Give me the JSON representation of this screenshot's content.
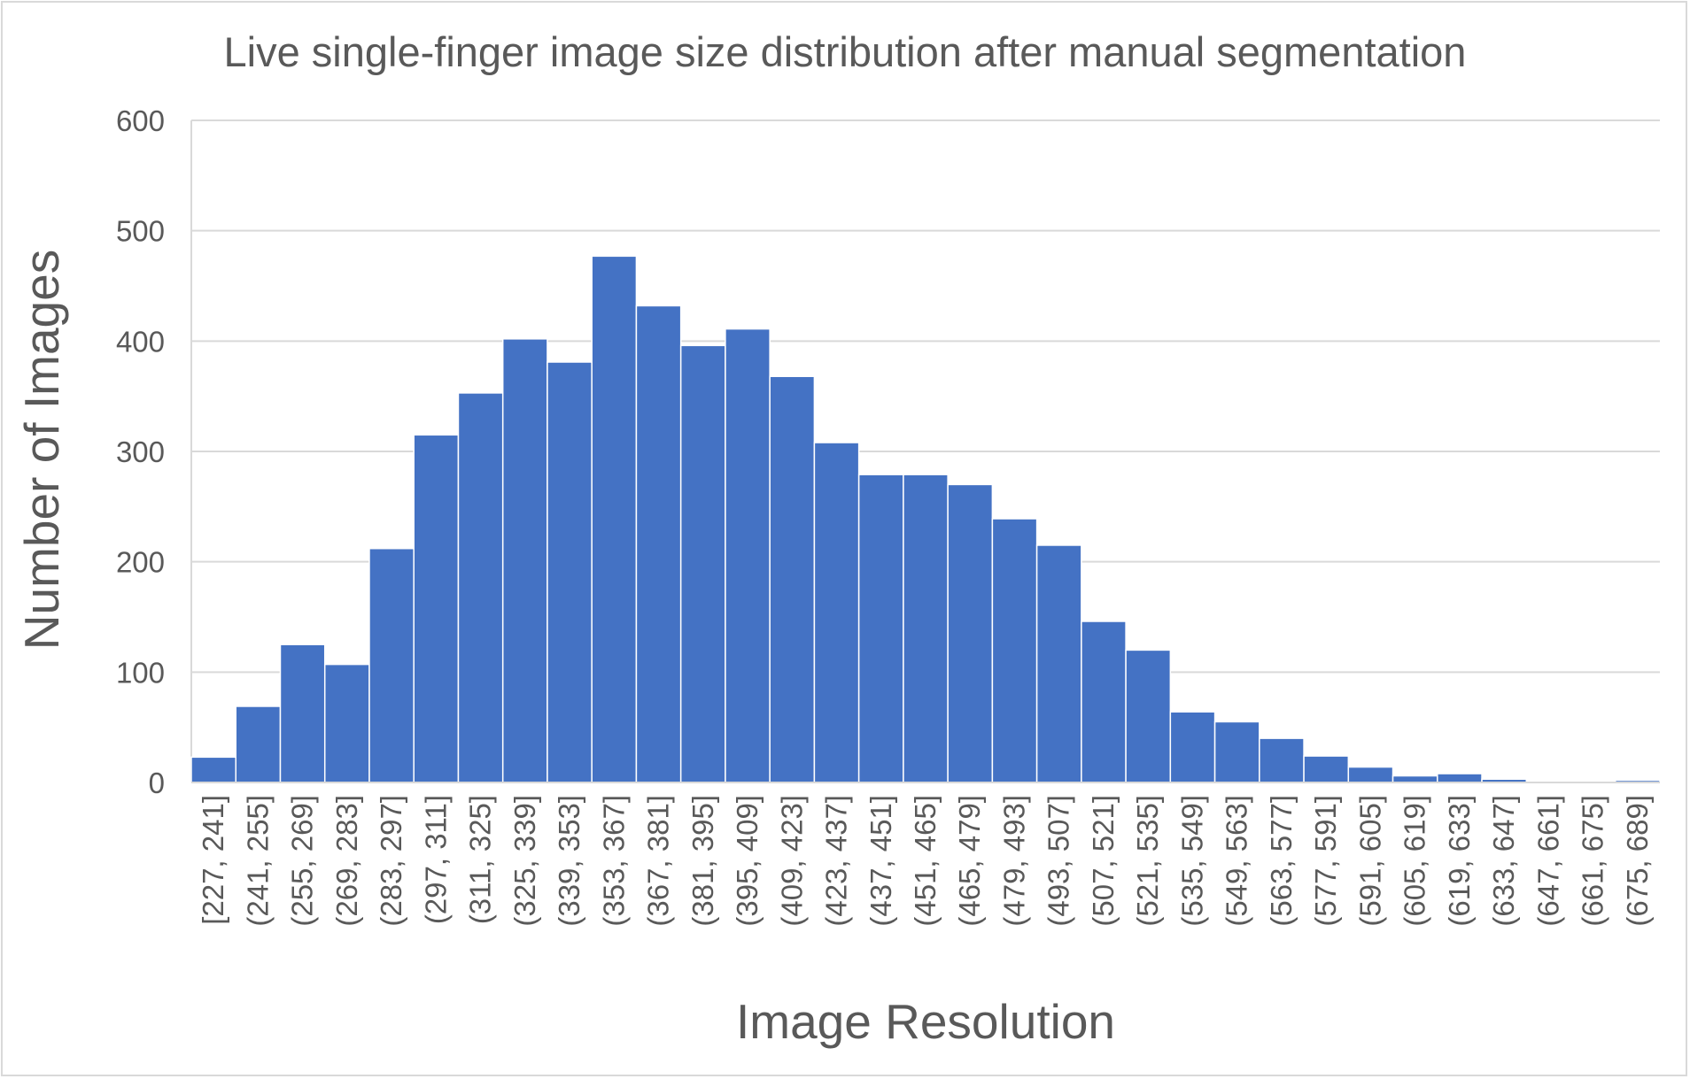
{
  "chart_data": {
    "type": "bar",
    "title": "Live single-finger image size distribution after manual segmentation",
    "xlabel": "Image Resolution",
    "ylabel": "Number of Images",
    "ylim": [
      0,
      600
    ],
    "yticks": [
      0,
      100,
      200,
      300,
      400,
      500,
      600
    ],
    "grid": true,
    "legend": "none",
    "bar_color": "#4472C4",
    "categories": [
      "[227, 241]",
      "(241, 255]",
      "(255, 269]",
      "(269, 283]",
      "(283, 297]",
      "(297, 311]",
      "(311, 325]",
      "(325, 339]",
      "(339, 353]",
      "(353, 367]",
      "(367, 381]",
      "(381, 395]",
      "(395, 409]",
      "(409, 423]",
      "(423, 437]",
      "(437, 451]",
      "(451, 465]",
      "(465, 479]",
      "(479, 493]",
      "(493, 507]",
      "(507, 521]",
      "(521, 535]",
      "(535, 549]",
      "(549, 563]",
      "(563, 577]",
      "(577, 591]",
      "(591, 605]",
      "(605, 619]",
      "(619, 633]",
      "(633, 647]",
      "(647, 661]",
      "(661, 675]",
      "(675, 689]"
    ],
    "values": [
      23,
      69,
      125,
      107,
      212,
      315,
      353,
      402,
      381,
      477,
      432,
      396,
      411,
      368,
      308,
      279,
      279,
      270,
      239,
      215,
      146,
      120,
      64,
      55,
      40,
      24,
      14,
      6,
      8,
      3,
      0,
      0,
      2
    ]
  }
}
